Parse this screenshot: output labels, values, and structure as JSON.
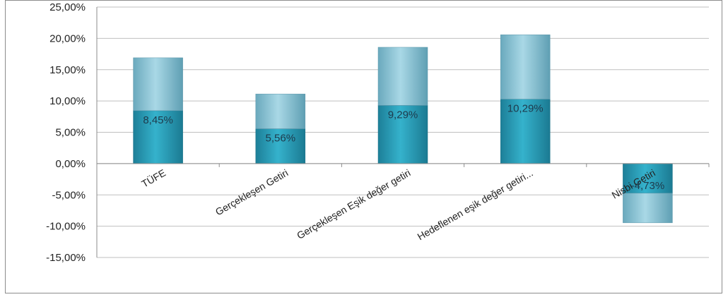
{
  "chart_data": {
    "type": "bar",
    "title": "",
    "xlabel": "",
    "ylabel": "",
    "ylim": [
      -15,
      25
    ],
    "yticks": [
      25,
      20,
      15,
      10,
      5,
      0,
      -5,
      -10,
      -15
    ],
    "ytick_labels": [
      "25,00%",
      "20,00%",
      "15,00%",
      "10,00%",
      "5,00%",
      "0,00%",
      "-5,00%",
      "-10,00%",
      "-15,00%"
    ],
    "categories": [
      "TÜFE",
      "Gerçekleşen Getiri",
      "Gerçekleşen Eşik değer getiri",
      "Hedeflenen eşik değer getiri...",
      "Nisbi Getiri"
    ],
    "series": [
      {
        "values": [
          8.45,
          5.56,
          9.29,
          10.29,
          -4.73
        ],
        "labels": [
          "8,45%",
          "5,56%",
          "9,29%",
          "10,29%",
          "-4,73%"
        ],
        "color": "#2a9fb8"
      },
      {
        "values": [
          8.45,
          5.56,
          9.29,
          10.29,
          -4.73
        ],
        "color": "#7fbfd2"
      }
    ],
    "stacked": true,
    "grid": true,
    "legend": "none"
  }
}
